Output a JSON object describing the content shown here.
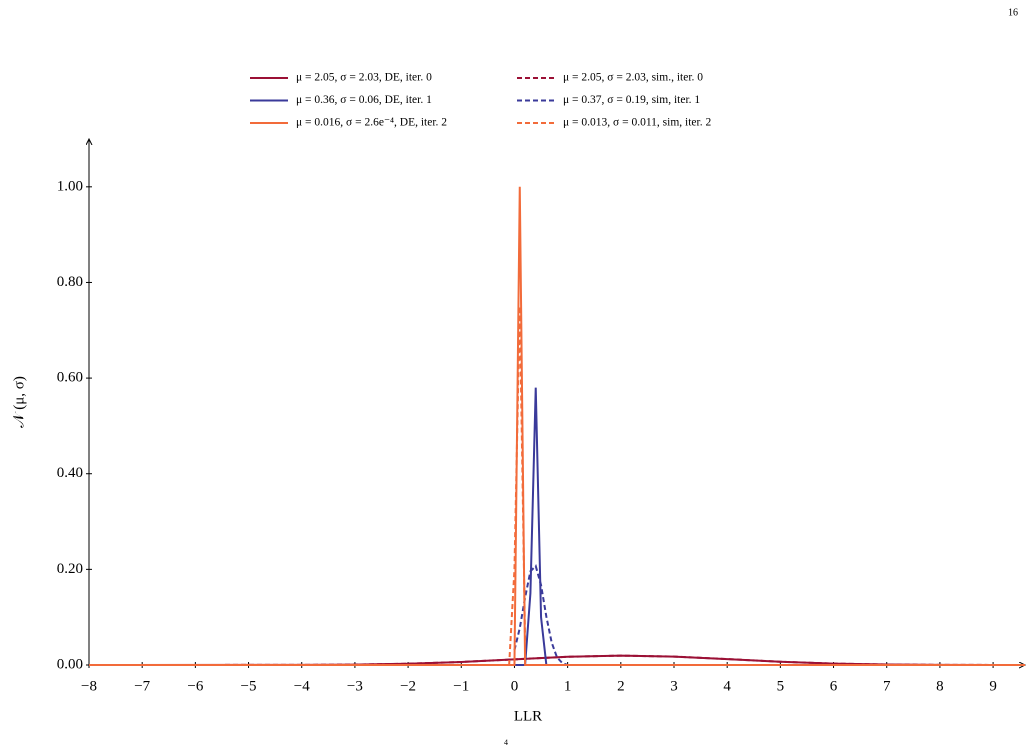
{
  "page_number": "16",
  "page_fragment": "4",
  "chart_data": {
    "type": "line",
    "xlabel": "LLR",
    "ylabel": "𝒩 (μ, σ)",
    "xlim": [
      -8,
      9.6
    ],
    "ylim": [
      0,
      1.1
    ],
    "xticks": [
      {
        "value": -8,
        "label": "−8"
      },
      {
        "value": -7,
        "label": "−7"
      },
      {
        "value": -6,
        "label": "−6"
      },
      {
        "value": -5,
        "label": "−5"
      },
      {
        "value": -4,
        "label": "−4"
      },
      {
        "value": -3,
        "label": "−3"
      },
      {
        "value": -2,
        "label": "−2"
      },
      {
        "value": -1,
        "label": "−1"
      },
      0,
      1,
      2,
      3,
      4,
      5,
      6,
      7,
      8,
      9
    ],
    "yticks": [
      {
        "value": 0,
        "label": "0.00"
      },
      {
        "value": 0.2,
        "label": "0.20"
      },
      {
        "value": 0.4,
        "label": "0.40"
      },
      {
        "value": 0.6,
        "label": "0.60"
      },
      {
        "value": 0.8,
        "label": "0.80"
      },
      {
        "value": 1,
        "label": "1.00"
      }
    ],
    "grid": false,
    "series": [
      {
        "name": "μ = 2.05, σ = 2.03, DE, iter. 0",
        "color": "#9b1035",
        "dashed": false,
        "x": [
          -8,
          -4,
          -3,
          -2,
          -1,
          0,
          1,
          2,
          3,
          4,
          5,
          6,
          7,
          8,
          9,
          9.6
        ],
        "values": [
          0,
          0.0002,
          0.0009,
          0.0027,
          0.0063,
          0.0118,
          0.0172,
          0.0196,
          0.0176,
          0.0124,
          0.0068,
          0.003,
          0.001,
          0.0003,
          0.0001,
          0
        ]
      },
      {
        "name": "μ = 0.36, σ = 0.06, DE, iter. 1",
        "color": "#3a3a9a",
        "dashed": false,
        "x": [
          -8,
          0.2,
          0.3,
          0.4,
          0.5,
          0.6,
          9.6
        ],
        "values": [
          0,
          0,
          0.15,
          0.58,
          0.1,
          0,
          0
        ]
      },
      {
        "name": "μ = 0.016, σ = 2.6e⁻⁴, DE, iter. 2",
        "color": "#f26b3a",
        "dashed": false,
        "x": [
          -8,
          0,
          0.1,
          0.2,
          9.6
        ],
        "values": [
          0,
          0,
          1,
          0,
          0
        ]
      },
      {
        "name": "μ = 2.05, σ = 2.03, sim., iter. 0",
        "color": "#9b1035",
        "dashed": true,
        "x": [
          -8,
          -4,
          -3,
          -2,
          -1,
          0,
          1,
          2,
          3,
          4,
          5,
          6,
          7,
          8,
          9,
          9.6
        ],
        "values": [
          0,
          0.0002,
          0.0009,
          0.0027,
          0.0063,
          0.0118,
          0.0172,
          0.0196,
          0.0176,
          0.0124,
          0.0068,
          0.003,
          0.001,
          0.0003,
          0.0001,
          0
        ]
      },
      {
        "name": "μ = 0.37, σ = 0.19, sim, iter. 1",
        "color": "#3a3a9a",
        "dashed": true,
        "x": [
          0,
          0.1,
          0.2,
          0.3,
          0.4,
          0.5,
          0.6,
          0.7,
          0.8,
          0.9,
          1
        ],
        "values": [
          0.031,
          0.077,
          0.141,
          0.196,
          0.207,
          0.167,
          0.101,
          0.047,
          0.016,
          0.004,
          0
        ]
      },
      {
        "name": "μ = 0.013, σ = 0.011, sim, iter. 2",
        "color": "#f26b3a",
        "dashed": true,
        "x": [
          -0.1,
          0,
          0.1,
          0.2
        ],
        "values": [
          0,
          0.2,
          0.75,
          0.05
        ]
      }
    ]
  }
}
